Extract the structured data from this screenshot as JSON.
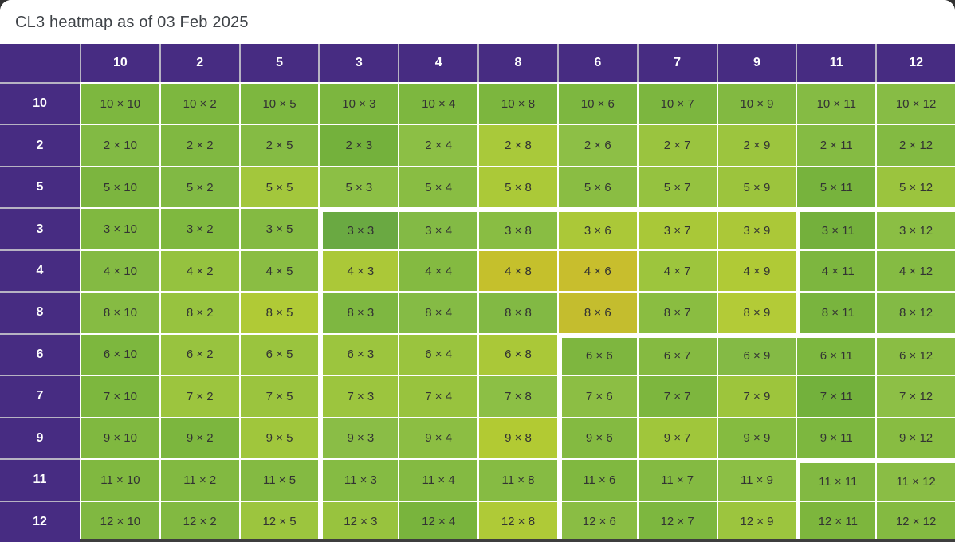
{
  "title": "CL3 heatmap as of 03 Feb 2025",
  "colors": {
    "header_purple": "#472c82",
    "card_bg": "#ffffff",
    "page_bg": "#333333",
    "cell_text": "#333333",
    "title_text": "#3f4348",
    "grid_gap_white": "#ffffff",
    "header_gap_gray": "#b7b3c3",
    "bottom_strip": "#3e3e3e",
    "cluster_border_white": "#ffffff"
  },
  "chart_data": {
    "type": "heatmap",
    "title": "CL3 heatmap as of 03 Feb 2025",
    "row_order": [
      "10",
      "2",
      "5",
      "3",
      "4",
      "8",
      "6",
      "7",
      "9",
      "11",
      "12"
    ],
    "col_order": [
      "10",
      "2",
      "5",
      "3",
      "4",
      "8",
      "6",
      "7",
      "9",
      "11",
      "12"
    ],
    "cell_label_format": "{row} × {col}",
    "labels": [
      [
        "10 × 10",
        "10 × 2",
        "10 × 5",
        "10 × 3",
        "10 × 4",
        "10 × 8",
        "10 × 6",
        "10 × 7",
        "10 × 9",
        "10 × 11",
        "10 × 12"
      ],
      [
        "2 × 10",
        "2 × 2",
        "2 × 5",
        "2 × 3",
        "2 × 4",
        "2 × 8",
        "2 × 6",
        "2 × 7",
        "2 × 9",
        "2 × 11",
        "2 × 12"
      ],
      [
        "5 × 10",
        "5 × 2",
        "5 × 5",
        "5 × 3",
        "5 × 4",
        "5 × 8",
        "5 × 6",
        "5 × 7",
        "5 × 9",
        "5 × 11",
        "5 × 12"
      ],
      [
        "3 × 10",
        "3 × 2",
        "3 × 5",
        "3 × 3",
        "3 × 4",
        "3 × 8",
        "3 × 6",
        "3 × 7",
        "3 × 9",
        "3 × 11",
        "3 × 12"
      ],
      [
        "4 × 10",
        "4 × 2",
        "4 × 5",
        "4 × 3",
        "4 × 4",
        "4 × 8",
        "4 × 6",
        "4 × 7",
        "4 × 9",
        "4 × 11",
        "4 × 12"
      ],
      [
        "8 × 10",
        "8 × 2",
        "8 × 5",
        "8 × 3",
        "8 × 4",
        "8 × 8",
        "8 × 6",
        "8 × 7",
        "8 × 9",
        "8 × 11",
        "8 × 12"
      ],
      [
        "6 × 10",
        "6 × 2",
        "6 × 5",
        "6 × 3",
        "6 × 4",
        "6 × 8",
        "6 × 6",
        "6 × 7",
        "6 × 9",
        "6 × 11",
        "6 × 12"
      ],
      [
        "7 × 10",
        "7 × 2",
        "7 × 5",
        "7 × 3",
        "7 × 4",
        "7 × 8",
        "7 × 6",
        "7 × 7",
        "7 × 9",
        "7 × 11",
        "7 × 12"
      ],
      [
        "9 × 10",
        "9 × 2",
        "9 × 5",
        "9 × 3",
        "9 × 4",
        "9 × 8",
        "9 × 6",
        "9 × 7",
        "9 × 9",
        "9 × 11",
        "9 × 12"
      ],
      [
        "11 × 10",
        "11 × 2",
        "11 × 5",
        "11 × 3",
        "11 × 4",
        "11 × 8",
        "11 × 6",
        "11 × 7",
        "11 × 9",
        "11 × 11",
        "11 × 12"
      ],
      [
        "12 × 10",
        "12 × 2",
        "12 × 5",
        "12 × 3",
        "12 × 4",
        "12 × 8",
        "12 × 6",
        "12 × 7",
        "12 × 9",
        "12 × 11",
        "12 × 12"
      ]
    ],
    "cell_colors": [
      [
        "#7db73f",
        "#7db73f",
        "#7db73f",
        "#7cb63f",
        "#7db73f",
        "#7cb63e",
        "#7db740",
        "#7cb63f",
        "#82b941",
        "#85bb44",
        "#87bc45"
      ],
      [
        "#82ba44",
        "#80b841",
        "#85bb44",
        "#74b13c",
        "#8cbf45",
        "#a9c93a",
        "#8dbf46",
        "#9ac43f",
        "#9cc53e",
        "#85bb43",
        "#83ba42"
      ],
      [
        "#7cb53f",
        "#81b944",
        "#a3c73c",
        "#8cbf45",
        "#89bd43",
        "#abc938",
        "#8abd43",
        "#95c240",
        "#9cc43d",
        "#77b33d",
        "#9bc43e"
      ],
      [
        "#80b840",
        "#7fb83f",
        "#84ba42",
        "#6aa942",
        "#83ba45",
        "#89bd43",
        "#abc838",
        "#a9c838",
        "#abc838",
        "#74b03c",
        "#8bbe44"
      ],
      [
        "#84ba43",
        "#95c23f",
        "#8abd43",
        "#abc838",
        "#84ba41",
        "#c5c02c",
        "#c8be2d",
        "#9dc53d",
        "#b0ca36",
        "#7db63f",
        "#85bb43"
      ],
      [
        "#86bb43",
        "#97c33f",
        "#b0ca36",
        "#7eb741",
        "#85bb45",
        "#82b944",
        "#c4bd2e",
        "#8abd41",
        "#b3cb37",
        "#79b43e",
        "#83ba45"
      ],
      [
        "#7db73e",
        "#98c33f",
        "#9ac43e",
        "#9cc53e",
        "#9ac43e",
        "#aac838",
        "#7eb63f",
        "#85ba41",
        "#84ba45",
        "#7db73f",
        "#8abd44"
      ],
      [
        "#7db73e",
        "#9cc53e",
        "#9bc43e",
        "#9cc53e",
        "#98c33e",
        "#8cbf45",
        "#8cbe44",
        "#7db63e",
        "#9dc53c",
        "#73b13c",
        "#8dbf46"
      ],
      [
        "#80b840",
        "#7cb63e",
        "#a0c63c",
        "#8abd46",
        "#8cbe43",
        "#b2ca33",
        "#84ba41",
        "#a0c63b",
        "#85bb40",
        "#7db73f",
        "#88bc42"
      ],
      [
        "#80b840",
        "#82b941",
        "#84ba42",
        "#85bb43",
        "#84ba42",
        "#86bb43",
        "#80b840",
        "#84ba42",
        "#8cbf45",
        "#82b942",
        "#8abd45"
      ],
      [
        "#80b841",
        "#82b941",
        "#9cc53e",
        "#98c33e",
        "#79b43d",
        "#afca37",
        "#8abd44",
        "#7db73f",
        "#9cc53e",
        "#7db63d",
        "#84ba41"
      ]
    ],
    "cluster_boundaries": {
      "row_lines": [
        {
          "above_row_index": 3,
          "from_col_index": 3
        },
        {
          "above_row_index": 6,
          "from_col_index": 6
        },
        {
          "above_row_index": 9,
          "from_col_index": 9
        }
      ],
      "col_lines": [
        {
          "left_of_col_index": 3,
          "from_row_index": 3
        },
        {
          "left_of_col_index": 6,
          "from_row_index": 6
        },
        {
          "left_of_col_index": 9,
          "from_row_index": 9
        },
        {
          "left_of_col_index": 9,
          "row_indices": [
            3,
            4,
            5
          ]
        }
      ]
    },
    "legend": "none",
    "grid": "white 2px gaps between cells"
  }
}
